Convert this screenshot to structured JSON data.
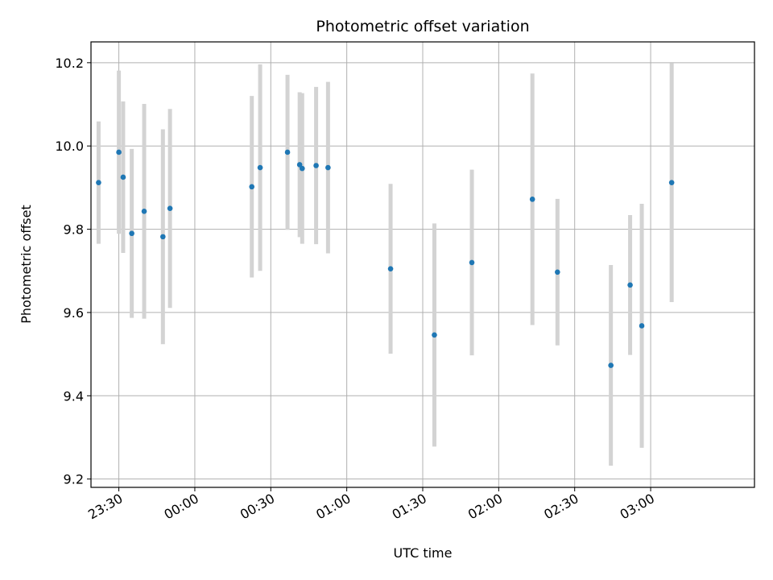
{
  "chart_data": {
    "type": "scatter",
    "title": "Photometric offset variation",
    "xlabel": "UTC time",
    "ylabel": "Photometric offset",
    "x_tick_labels": [
      "23:30",
      "00:00",
      "00:30",
      "01:00",
      "01:30",
      "02:00",
      "02:30",
      "03:00"
    ],
    "y_tick_labels": [
      "9.2",
      "9.4",
      "9.6",
      "9.8",
      "10.0",
      "10.2"
    ],
    "x_axis": "UTC time, minutes after 23:00",
    "xlim": [
      19,
      281
    ],
    "ylim": [
      9.18,
      10.25
    ],
    "x_ticks": [
      30,
      60,
      90,
      120,
      150,
      180,
      210,
      240
    ],
    "y_ticks": [
      9.2,
      9.4,
      9.6,
      9.8,
      10.0,
      10.2
    ],
    "grid": true,
    "marker_color": "#1f77b4",
    "errorbar_color": "#d3d3d3",
    "points": [
      {
        "x": 22.0,
        "y": 9.912,
        "err": 0.147
      },
      {
        "x": 30.0,
        "y": 9.985,
        "err": 0.196
      },
      {
        "x": 31.7,
        "y": 9.925,
        "err": 0.182
      },
      {
        "x": 35.1,
        "y": 9.79,
        "err": 0.203
      },
      {
        "x": 40.0,
        "y": 9.843,
        "err": 0.258
      },
      {
        "x": 47.4,
        "y": 9.782,
        "err": 0.258
      },
      {
        "x": 50.2,
        "y": 9.85,
        "err": 0.239
      },
      {
        "x": 82.5,
        "y": 9.902,
        "err": 0.218
      },
      {
        "x": 85.8,
        "y": 9.948,
        "err": 0.248
      },
      {
        "x": 96.6,
        "y": 9.985,
        "err": 0.186
      },
      {
        "x": 101.4,
        "y": 9.955,
        "err": 0.174
      },
      {
        "x": 102.4,
        "y": 9.946,
        "err": 0.181
      },
      {
        "x": 107.9,
        "y": 9.953,
        "err": 0.189
      },
      {
        "x": 112.6,
        "y": 9.948,
        "err": 0.206
      },
      {
        "x": 137.3,
        "y": 9.705,
        "err": 0.204
      },
      {
        "x": 154.6,
        "y": 9.546,
        "err": 0.268
      },
      {
        "x": 169.4,
        "y": 9.72,
        "err": 0.223
      },
      {
        "x": 193.3,
        "y": 9.872,
        "err": 0.302
      },
      {
        "x": 203.2,
        "y": 9.697,
        "err": 0.176
      },
      {
        "x": 224.3,
        "y": 9.473,
        "err": 0.241
      },
      {
        "x": 231.9,
        "y": 9.666,
        "err": 0.168
      },
      {
        "x": 236.5,
        "y": 9.568,
        "err": 0.293
      },
      {
        "x": 248.3,
        "y": 9.912,
        "err": 0.287
      }
    ]
  }
}
